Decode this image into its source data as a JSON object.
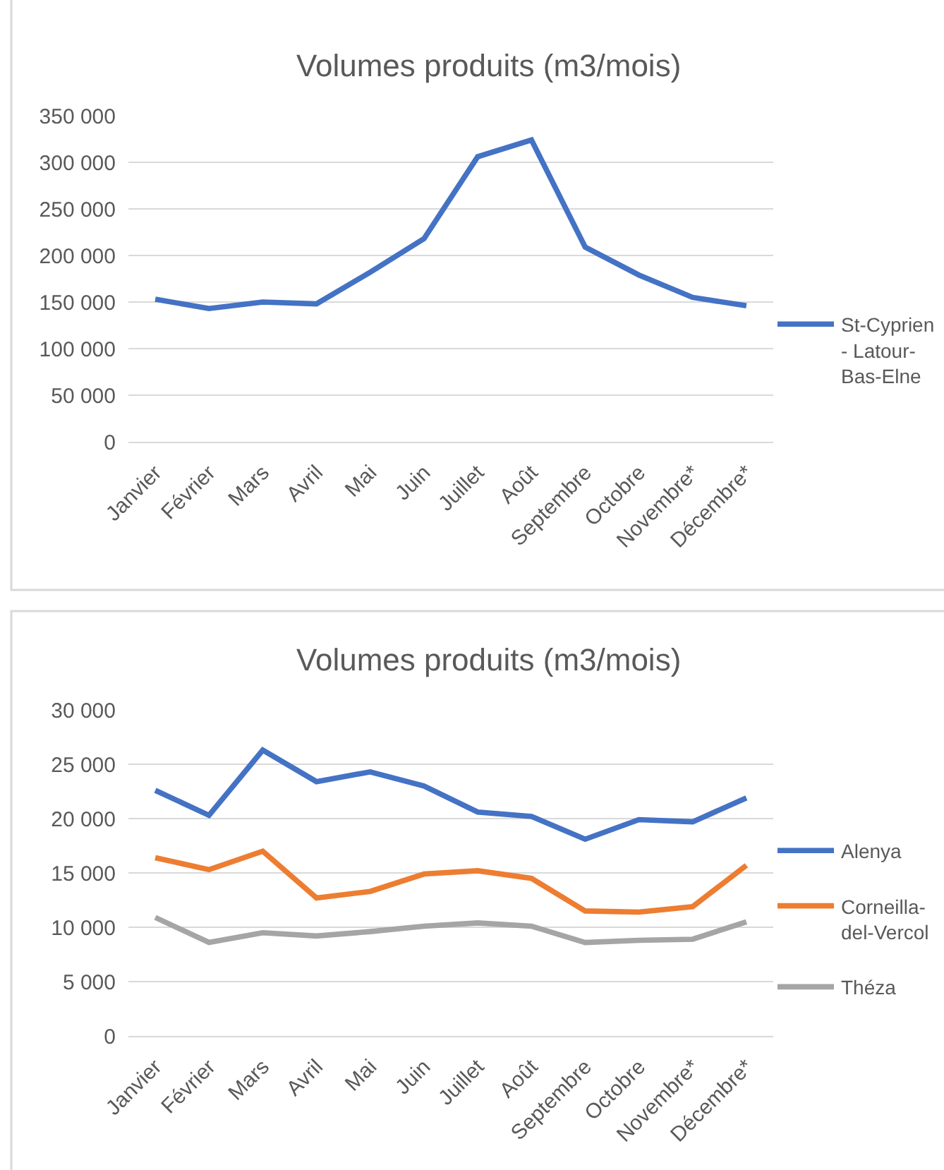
{
  "chart_data": [
    {
      "type": "line",
      "title": "Volumes produits (m3/mois)",
      "categories": [
        "Janvier",
        "Février",
        "Mars",
        "Avril",
        "Mai",
        "Juin",
        "Juillet",
        "Août",
        "Septembre",
        "Octobre",
        "Novembre*",
        "Décembre*"
      ],
      "series": [
        {
          "name": "St-Cyprien - Latour-Bas-Elne",
          "color": "#4472c4",
          "values": [
            153000,
            143000,
            150000,
            148000,
            182000,
            218000,
            306000,
            324000,
            209000,
            179000,
            155000,
            146000
          ]
        }
      ],
      "ylim": [
        0,
        350000
      ],
      "yticks": [
        0,
        {
          "value": 50000,
          "label": "50 000"
        },
        {
          "value": 100000,
          "label": "100 000"
        },
        {
          "value": 150000,
          "label": "150 000"
        },
        {
          "value": 200000,
          "label": "200 000"
        },
        {
          "value": 250000,
          "label": "250 000"
        },
        {
          "value": 300000,
          "label": "300 000"
        },
        {
          "value": 350000,
          "label": "350 000"
        }
      ],
      "grid": "y",
      "legend": "right"
    },
    {
      "type": "line",
      "title": "Volumes produits (m3/mois)",
      "categories": [
        "Janvier",
        "Février",
        "Mars",
        "Avril",
        "Mai",
        "Juin",
        "Juillet",
        "Août",
        "Septembre",
        "Octobre",
        "Novembre*",
        "Décembre*"
      ],
      "series": [
        {
          "name": "Alenya",
          "color": "#4472c4",
          "values": [
            22600,
            20300,
            26300,
            23400,
            24300,
            23000,
            20600,
            20200,
            18100,
            19900,
            19700,
            21900
          ]
        },
        {
          "name": "Corneilla-del-Vercol",
          "color": "#ed7d31",
          "values": [
            16400,
            15300,
            17000,
            12700,
            13300,
            14900,
            15200,
            14500,
            11500,
            11400,
            11900,
            15700
          ]
        },
        {
          "name": "Théza",
          "color": "#a5a5a5",
          "values": [
            10900,
            8600,
            9500,
            9200,
            9600,
            10100,
            10400,
            10100,
            8600,
            8800,
            8900,
            10500
          ]
        }
      ],
      "ylim": [
        0,
        30000
      ],
      "yticks": [
        0,
        {
          "value": 5000,
          "label": "5 000"
        },
        {
          "value": 10000,
          "label": "10 000"
        },
        {
          "value": 15000,
          "label": "15 000"
        },
        {
          "value": 20000,
          "label": "20 000"
        },
        {
          "value": 25000,
          "label": "25 000"
        },
        {
          "value": 30000,
          "label": "30 000"
        }
      ],
      "grid": "y",
      "legend": "right"
    }
  ]
}
